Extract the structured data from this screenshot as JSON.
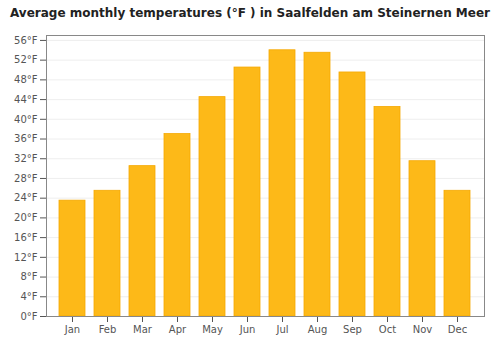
{
  "chart_data": {
    "type": "bar",
    "title": "Average monthly temperatures (°F ) in Saalfelden am Steinernen Meer",
    "categories": [
      "Jan",
      "Feb",
      "Mar",
      "Apr",
      "May",
      "Jun",
      "Jul",
      "Aug",
      "Sep",
      "Oct",
      "Nov",
      "Dec"
    ],
    "values": [
      23.5,
      25.5,
      30.5,
      37.0,
      44.5,
      50.5,
      54.0,
      53.5,
      49.5,
      42.5,
      31.5,
      25.5
    ],
    "color": "#FDB918",
    "ylim": [
      0,
      57
    ],
    "yticks": [
      {
        "value": 0,
        "label": "0°F"
      },
      {
        "value": 4,
        "label": "4°F"
      },
      {
        "value": 8,
        "label": "8°F"
      },
      {
        "value": 12,
        "label": "12°F"
      },
      {
        "value": 16,
        "label": "16°F"
      },
      {
        "value": 20,
        "label": "20°F"
      },
      {
        "value": 24,
        "label": "24°F"
      },
      {
        "value": 28,
        "label": "28°F"
      },
      {
        "value": 32,
        "label": "32°F"
      },
      {
        "value": 36,
        "label": "36°F"
      },
      {
        "value": 40,
        "label": "40°F"
      },
      {
        "value": 44,
        "label": "44°F"
      },
      {
        "value": 48,
        "label": "48°F"
      },
      {
        "value": 52,
        "label": "52°F"
      },
      {
        "value": 56,
        "label": "56°F"
      }
    ],
    "grid": true
  }
}
